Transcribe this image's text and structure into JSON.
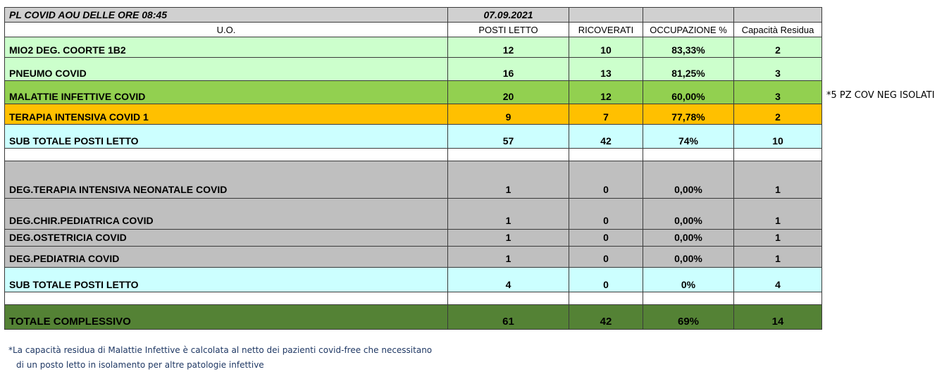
{
  "title_row": {
    "label": "PL COVID AOU DELLE ORE  08:45",
    "date": "07.09.2021"
  },
  "headers": {
    "uo": "U.O.",
    "posti_letto": "POSTI LETTO",
    "ricoverati": "RICOVERATI",
    "occupazione": "OCCUPAZIONE %",
    "capacita": "Capacità Residua"
  },
  "rows": [
    {
      "name": "MIO2 DEG. COORTE 1B2",
      "posti": "12",
      "ricoverati": "10",
      "occupazione": "83,33%",
      "capacita": "2",
      "color": "#ccffcc"
    },
    {
      "name": "PNEUMO COVID",
      "posti": "16",
      "ricoverati": "13",
      "occupazione": "81,25%",
      "capacita": "3",
      "color": "#ccffcc"
    },
    {
      "name": "MALATTIE INFETTIVE COVID",
      "posti": "20",
      "ricoverati": "12",
      "occupazione": "60,00%",
      "capacita": "3",
      "color": "#92d050"
    },
    {
      "name": "TERAPIA INTENSIVA COVID 1",
      "posti": "9",
      "ricoverati": "7",
      "occupazione": "77,78%",
      "capacita": "2",
      "color": "#ffc000"
    },
    {
      "name": "SUB TOTALE POSTI LETTO",
      "posti": "57",
      "ricoverati": "42",
      "occupazione": "74%",
      "capacita": "10",
      "color": "#ccffff"
    },
    {
      "name": "DEG.TERAPIA INTENSIVA NEONATALE COVID",
      "posti": "1",
      "ricoverati": "0",
      "occupazione": "0,00%",
      "capacita": "1",
      "color": "#bfbfbf"
    },
    {
      "name": "DEG.CHIR.PEDIATRICA COVID",
      "posti": "1",
      "ricoverati": "0",
      "occupazione": "0,00%",
      "capacita": "1",
      "color": "#bfbfbf"
    },
    {
      "name": "DEG.OSTETRICIA COVID",
      "posti": "1",
      "ricoverati": "0",
      "occupazione": "0,00%",
      "capacita": "1",
      "color": "#bfbfbf"
    },
    {
      "name": "DEG.PEDIATRIA COVID",
      "posti": "1",
      "ricoverati": "0",
      "occupazione": "0,00%",
      "capacita": "1",
      "color": "#bfbfbf"
    },
    {
      "name": "SUB TOTALE POSTI LETTO",
      "posti": "4",
      "ricoverati": "0",
      "occupazione": "0%",
      "capacita": "4",
      "color": "#ccffff"
    },
    {
      "name": "TOTALE  COMPLESSIVO",
      "posti": "61",
      "ricoverati": "42",
      "occupazione": "69%",
      "capacita": "14",
      "color": "#548235"
    }
  ],
  "side_note": "*5 PZ COV NEG ISOLATI",
  "footnote": {
    "line1": "*La capacità residua di Malattie Infettive è calcolata al netto dei pazienti covid-free che necessitano",
    "line2": "di un posto letto in isolamento per altre patologie infettive"
  }
}
